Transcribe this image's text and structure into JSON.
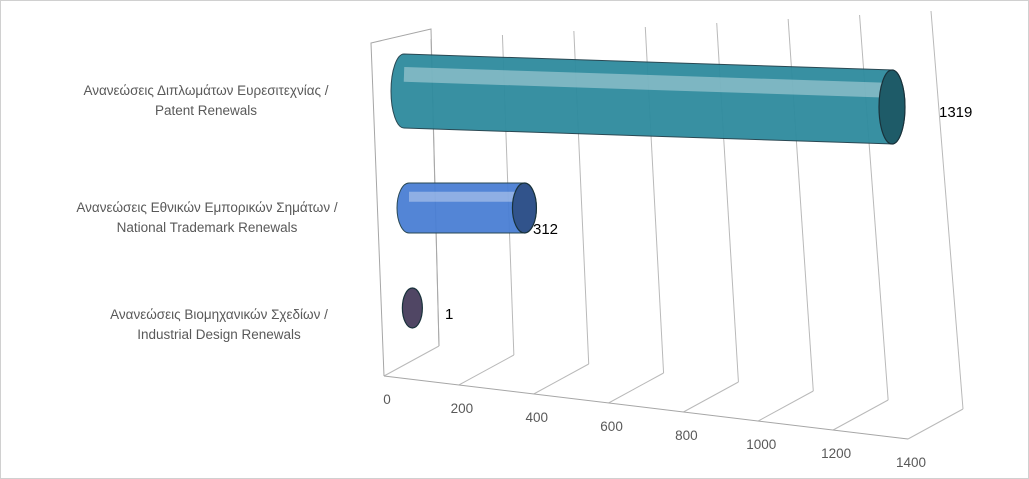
{
  "chart_data": {
    "type": "bar",
    "orientation": "horizontal",
    "style": "3d-cylinder",
    "categories": [
      "Ανανεώσεις Διπλωμάτων Ευρεσιτεχνίας / Patent Renewals",
      "Ανανεώσεις Εθνικών Εμπορικών Σημάτων / National Trademark Renewals",
      "Ανανεώσεις Βιομηχανικών Σχεδίων  / Industrial Design Renewals"
    ],
    "category_lines": [
      [
        "Ανανεώσεις Διπλωμάτων Ευρεσιτεχνίας /",
        "Patent Renewals"
      ],
      [
        "Ανανεώσεις Εθνικών Εμπορικών Σημάτων /",
        "National Trademark Renewals"
      ],
      [
        "Ανανεώσεις Βιομηχανικών Σχεδίων  /",
        "Industrial Design Renewals"
      ]
    ],
    "values": [
      1319,
      312,
      1
    ],
    "data_labels": [
      "1319",
      "312",
      "1"
    ],
    "colors": [
      "#2e8b9e",
      "#4a7fd4",
      "#7a6a98"
    ],
    "xlim": [
      0,
      1400
    ],
    "xticks": [
      0,
      200,
      400,
      600,
      800,
      1000,
      1200,
      1400
    ],
    "xtick_labels": [
      "0",
      "200",
      "400",
      "600",
      "800",
      "1000",
      "1200",
      "1400"
    ],
    "grid": true,
    "legend": "none"
  }
}
